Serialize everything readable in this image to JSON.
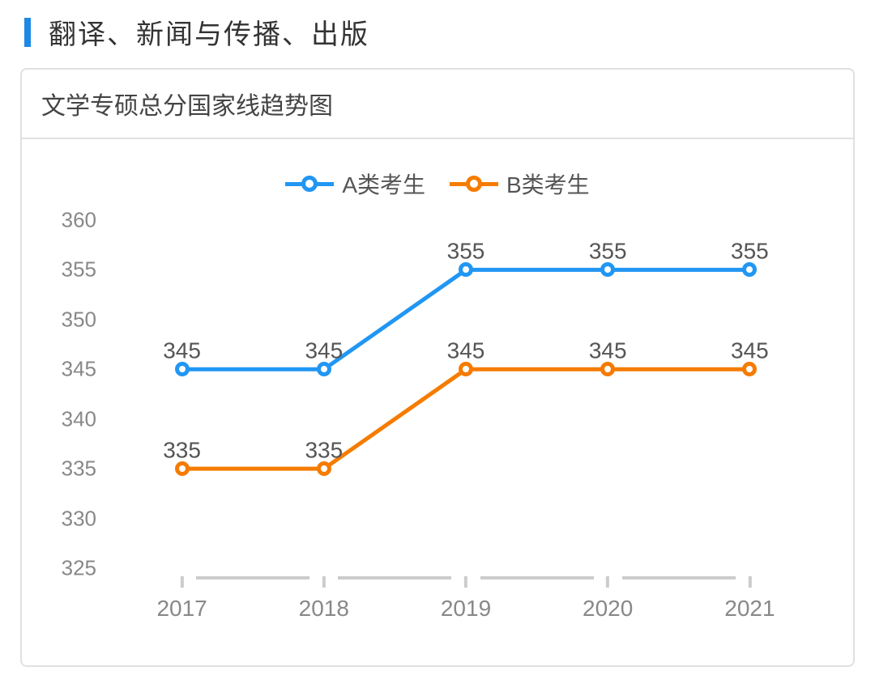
{
  "page": {
    "title": "翻译、新闻与传播、出版",
    "title_bar_color": "#1e88e5"
  },
  "chart": {
    "type": "line",
    "title": "文学专硕总分国家线趋势图",
    "background_color": "#ffffff",
    "border_color": "#e0e0e0",
    "axis_color": "#cccccc",
    "tick_label_color": "#888888",
    "data_label_color": "#555555",
    "categories": [
      "2017",
      "2018",
      "2019",
      "2020",
      "2021"
    ],
    "x_positions_pct": [
      10,
      30,
      50,
      70,
      90
    ],
    "y_axis": {
      "min": 325,
      "max": 360,
      "step": 5,
      "ticks": [
        325,
        330,
        335,
        340,
        345,
        350,
        355,
        360
      ]
    },
    "series": [
      {
        "name": "A类考生",
        "color": "#2196f3",
        "line_width": 5,
        "marker_radius": 9,
        "marker_border": 5,
        "values": [
          345,
          345,
          355,
          355,
          355
        ]
      },
      {
        "name": "B类考生",
        "color": "#f57c00",
        "line_width": 5,
        "marker_radius": 9,
        "marker_border": 5,
        "values": [
          335,
          335,
          345,
          345,
          345
        ]
      }
    ],
    "legend": {
      "fontsize": 28
    },
    "label_fontsize": 28,
    "tick_fontsize": 26
  }
}
